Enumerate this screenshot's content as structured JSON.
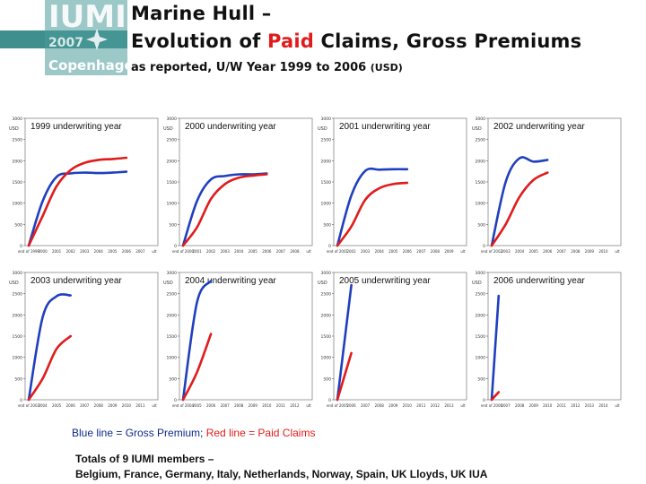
{
  "logo": {
    "text_main": "IUMI",
    "text_year": "2007",
    "text_city": "Copenhagen"
  },
  "header": {
    "title_line1": "Marine Hull –",
    "title_line2_pre": "Evolution of ",
    "title_line2_red": "Paid",
    "title_line2_post": " Claims, Gross Premiums",
    "subtitle": "as reported, U/W Year 1999 to 2006",
    "subtitle_unit": "(USD)"
  },
  "colors": {
    "premium": "#1f3fbf",
    "claims": "#e11b1b",
    "band": "#3f8f8f"
  },
  "legend": {
    "blue_text": "Blue line = Gross Premium; ",
    "red_text": "Red line = Paid Claims"
  },
  "footer": {
    "line1": "Totals of 9 IUMI members –",
    "line2": "Belgium, France, Germany, Italy, Netherlands, Norway, Spain, UK Lloyds, UK IUA"
  },
  "chart_data": [
    {
      "type": "line",
      "title": "1999 underwriting year",
      "ylabel": "USD",
      "ylim": [
        0,
        3000
      ],
      "yticks": [
        0,
        500,
        1000,
        1500,
        2000,
        2500,
        3000
      ],
      "categories": [
        "end of 1999",
        "2000",
        "2001",
        "2002",
        "2003",
        "2004",
        "2005",
        "2006",
        "2007",
        "ult"
      ],
      "series": [
        {
          "name": "Gross Premium",
          "x": [
            0,
            1,
            2,
            3,
            4,
            5,
            6,
            7
          ],
          "values": [
            0,
            1050,
            1620,
            1700,
            1720,
            1710,
            1720,
            1740
          ]
        },
        {
          "name": "Paid Claims",
          "x": [
            0,
            1,
            2,
            3,
            4,
            5,
            6,
            7
          ],
          "values": [
            0,
            700,
            1400,
            1780,
            1950,
            2020,
            2040,
            2070
          ]
        }
      ]
    },
    {
      "type": "line",
      "title": "2000 underwriting year",
      "ylabel": "USD",
      "ylim": [
        0,
        3000
      ],
      "yticks": [
        0,
        500,
        1000,
        1500,
        2000,
        2500,
        3000
      ],
      "categories": [
        "end of 2000",
        "2001",
        "2002",
        "2003",
        "2004",
        "2005",
        "2006",
        "2007",
        "2008",
        "ult"
      ],
      "series": [
        {
          "name": "Gross Premium",
          "x": [
            0,
            1,
            2,
            3,
            4,
            5,
            6
          ],
          "values": [
            0,
            1050,
            1560,
            1640,
            1680,
            1680,
            1700
          ]
        },
        {
          "name": "Paid Claims",
          "x": [
            0,
            1,
            2,
            3,
            4,
            5,
            6
          ],
          "values": [
            0,
            430,
            1100,
            1450,
            1600,
            1650,
            1680
          ]
        }
      ]
    },
    {
      "type": "line",
      "title": "2001 underwriting year",
      "ylabel": "USD",
      "ylim": [
        0,
        3000
      ],
      "yticks": [
        0,
        500,
        1000,
        1500,
        2000,
        2500,
        3000
      ],
      "categories": [
        "end of 2001",
        "2002",
        "2003",
        "2004",
        "2005",
        "2006",
        "2007",
        "2008",
        "2009",
        "ult"
      ],
      "series": [
        {
          "name": "Gross Premium",
          "x": [
            0,
            1,
            2,
            3,
            4,
            5
          ],
          "values": [
            0,
            1180,
            1760,
            1790,
            1800,
            1800
          ]
        },
        {
          "name": "Paid Claims",
          "x": [
            0,
            1,
            2,
            3,
            4,
            5
          ],
          "values": [
            0,
            450,
            1080,
            1350,
            1450,
            1480
          ]
        }
      ]
    },
    {
      "type": "line",
      "title": "2002 underwriting year",
      "ylabel": "USD",
      "ylim": [
        0,
        3000
      ],
      "yticks": [
        0,
        500,
        1000,
        1500,
        2000,
        2500,
        3000
      ],
      "categories": [
        "end of 2002",
        "2003",
        "2004",
        "2005",
        "2006",
        "2007",
        "2008",
        "2009",
        "2010",
        "ult"
      ],
      "series": [
        {
          "name": "Gross Premium",
          "x": [
            0,
            1,
            2,
            3,
            4
          ],
          "values": [
            0,
            1500,
            2060,
            1980,
            2020
          ]
        },
        {
          "name": "Paid Claims",
          "x": [
            0,
            1,
            2,
            3,
            4
          ],
          "values": [
            0,
            500,
            1150,
            1550,
            1720
          ]
        }
      ]
    },
    {
      "type": "line",
      "title": "2003 underwriting year",
      "ylabel": "USD",
      "ylim": [
        0,
        3000
      ],
      "yticks": [
        0,
        500,
        1000,
        1500,
        2000,
        2500,
        3000
      ],
      "categories": [
        "end of 2003",
        "2004",
        "2005",
        "2006",
        "2007",
        "2008",
        "2009",
        "2010",
        "2011",
        "ult"
      ],
      "series": [
        {
          "name": "Gross Premium",
          "x": [
            0,
            1,
            2,
            3
          ],
          "values": [
            0,
            1950,
            2440,
            2460
          ]
        },
        {
          "name": "Paid Claims",
          "x": [
            0,
            1,
            2,
            3
          ],
          "values": [
            0,
            500,
            1200,
            1500
          ]
        }
      ]
    },
    {
      "type": "line",
      "title": "2004 underwriting year",
      "ylabel": "USD",
      "ylim": [
        0,
        3000
      ],
      "yticks": [
        0,
        500,
        1000,
        1500,
        2000,
        2500,
        3000
      ],
      "categories": [
        "end of 2004",
        "2005",
        "2006",
        "2007",
        "2008",
        "2009",
        "2010",
        "2011",
        "2012",
        "ult"
      ],
      "series": [
        {
          "name": "Gross Premium",
          "x": [
            0,
            1,
            2
          ],
          "values": [
            0,
            2300,
            2800
          ]
        },
        {
          "name": "Paid Claims",
          "x": [
            0,
            1,
            2
          ],
          "values": [
            0,
            650,
            1550
          ]
        }
      ]
    },
    {
      "type": "line",
      "title": "2005 underwriting year",
      "ylabel": "USD",
      "ylim": [
        0,
        3000
      ],
      "yticks": [
        0,
        500,
        1000,
        1500,
        2000,
        2500,
        3000
      ],
      "categories": [
        "end of 2005",
        "2006",
        "2007",
        "2008",
        "2009",
        "2010",
        "2011",
        "2012",
        "2013",
        "ult"
      ],
      "series": [
        {
          "name": "Gross Premium",
          "x": [
            0,
            1
          ],
          "values": [
            0,
            2700
          ]
        },
        {
          "name": "Paid Claims",
          "x": [
            0,
            1
          ],
          "values": [
            0,
            1100
          ]
        }
      ]
    },
    {
      "type": "line",
      "title": "2006 underwriting year",
      "ylabel": "USD",
      "ylim": [
        0,
        3000
      ],
      "yticks": [
        0,
        500,
        1000,
        1500,
        2000,
        2500,
        3000
      ],
      "categories": [
        "end of 2006",
        "2007",
        "2008",
        "2009",
        "2010",
        "2011",
        "2012",
        "2013",
        "2014",
        "ult"
      ],
      "series": [
        {
          "name": "Gross Premium",
          "x": [
            0,
            0.5
          ],
          "values": [
            0,
            2450
          ]
        },
        {
          "name": "Paid Claims",
          "x": [
            0,
            0.5
          ],
          "values": [
            0,
            180
          ]
        }
      ]
    }
  ]
}
